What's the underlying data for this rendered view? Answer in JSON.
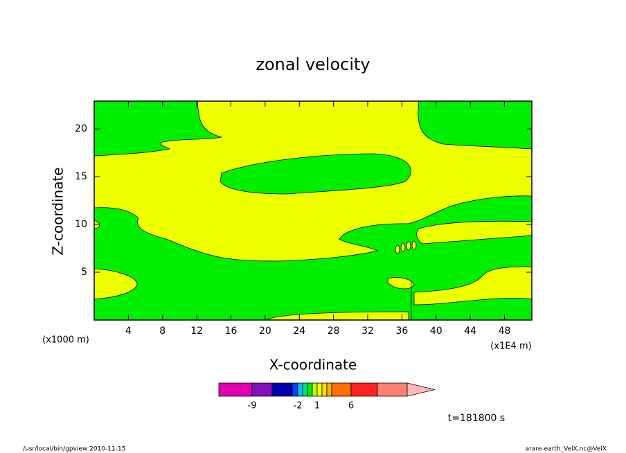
{
  "chart_data": {
    "type": "contour",
    "title": "zonal velocity",
    "xlabel": "X-coordinate",
    "ylabel": "Z-coordinate",
    "x_unit_label": "(x1E4 m)",
    "y_unit_label": "(x1000 m)",
    "xlim": [
      0,
      51.2
    ],
    "ylim": [
      0,
      22.9
    ],
    "xticks": [
      4,
      8,
      12,
      16,
      20,
      24,
      28,
      32,
      36,
      40,
      44,
      48
    ],
    "yticks": [
      5,
      10,
      15,
      20
    ],
    "colorbar": {
      "levels": [
        -12,
        -9,
        -6,
        -3,
        -2,
        -1.5,
        -1,
        0,
        1,
        2,
        3,
        4,
        6,
        9,
        12
      ],
      "colors": [
        "#e000b0",
        "#8010c0",
        "#0000b0",
        "#0040ff",
        "#00c0ff",
        "#00e080",
        "#00ee00",
        "#c0ff00",
        "#eeff00",
        "#ffe000",
        "#ffb000",
        "#ff7000",
        "#ff2020",
        "#ff8070",
        "#ffb8b8"
      ],
      "labels": [
        -9,
        -2,
        1,
        6
      ]
    },
    "time_label": "t=181800 s",
    "footer_left": "/usr/local/bin/gpview  2010-11-15",
    "footer_right": "arare-earth_VelX.nc@VelX"
  }
}
